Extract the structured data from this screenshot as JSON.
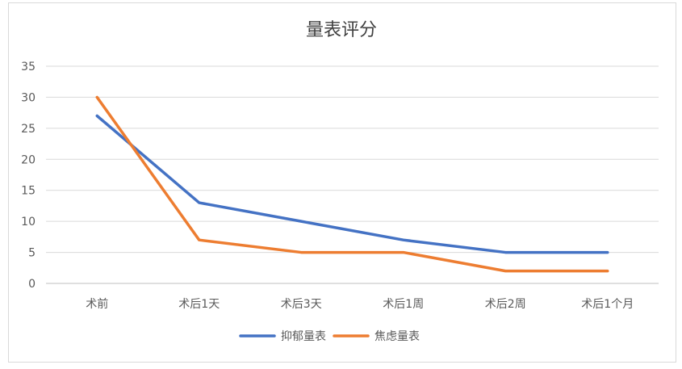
{
  "chart_data": {
    "type": "line",
    "title": "量表评分",
    "categories": [
      "术前",
      "术后1天",
      "术后3天",
      "术后1周",
      "术后2周",
      "术后1个月"
    ],
    "series": [
      {
        "name": "抑郁量表",
        "values": [
          27,
          13,
          10,
          7,
          5,
          5
        ],
        "color": "#4472c4"
      },
      {
        "name": "焦虑量表",
        "values": [
          30,
          7,
          5,
          5,
          2,
          2
        ],
        "color": "#ed7d31"
      }
    ],
    "yticks": [
      0,
      5,
      10,
      15,
      20,
      25,
      30,
      35
    ],
    "ylim": [
      0,
      35
    ],
    "grid": true,
    "legend": "bottom"
  }
}
